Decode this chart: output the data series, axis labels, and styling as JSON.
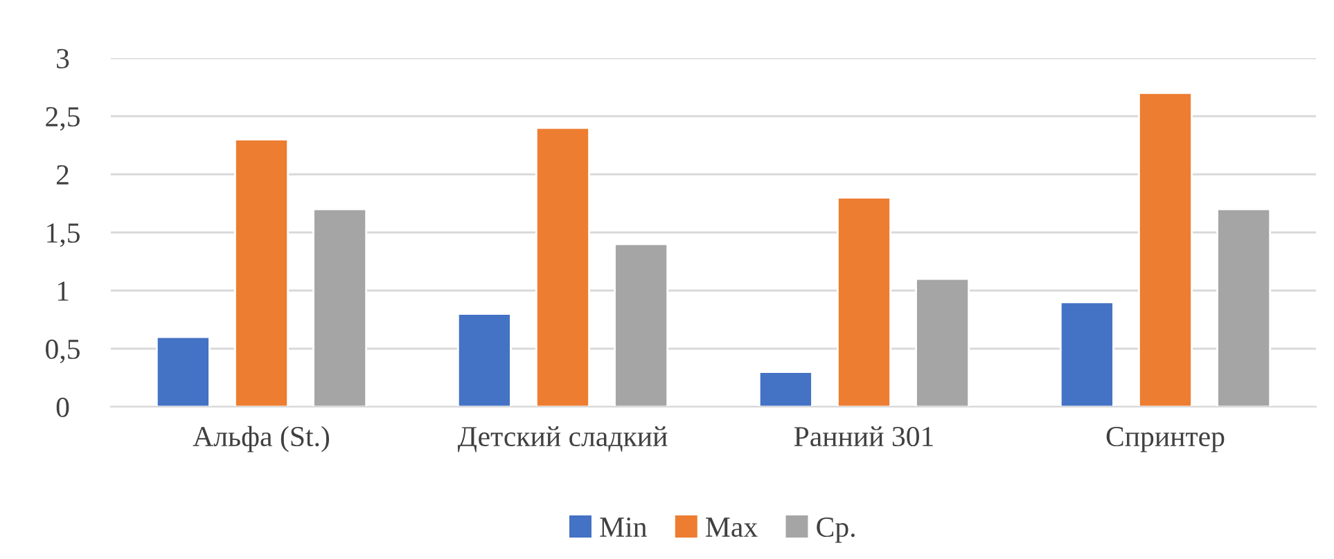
{
  "chart_data": {
    "type": "bar",
    "categories": [
      "Альфа (St.)",
      "Детский сладкий",
      "Ранний 301",
      "Спринтер"
    ],
    "series": [
      {
        "name": "Min",
        "color": "#4472c4",
        "values": [
          0.6,
          0.8,
          0.3,
          0.9
        ]
      },
      {
        "name": "Max",
        "color": "#ed7d31",
        "values": [
          2.3,
          2.4,
          1.8,
          2.7
        ]
      },
      {
        "name": "Ср.",
        "color": "#a5a5a5",
        "values": [
          1.7,
          1.4,
          1.1,
          1.7
        ]
      }
    ],
    "ylim": [
      0,
      3
    ],
    "yticks": [
      0,
      {
        "value": 0.5,
        "label": "0,5"
      },
      1,
      {
        "value": 1.5,
        "label": "1,5"
      },
      2,
      {
        "value": 2.5,
        "label": "2,5"
      },
      3
    ],
    "grid": "y",
    "legend": "bottom"
  }
}
